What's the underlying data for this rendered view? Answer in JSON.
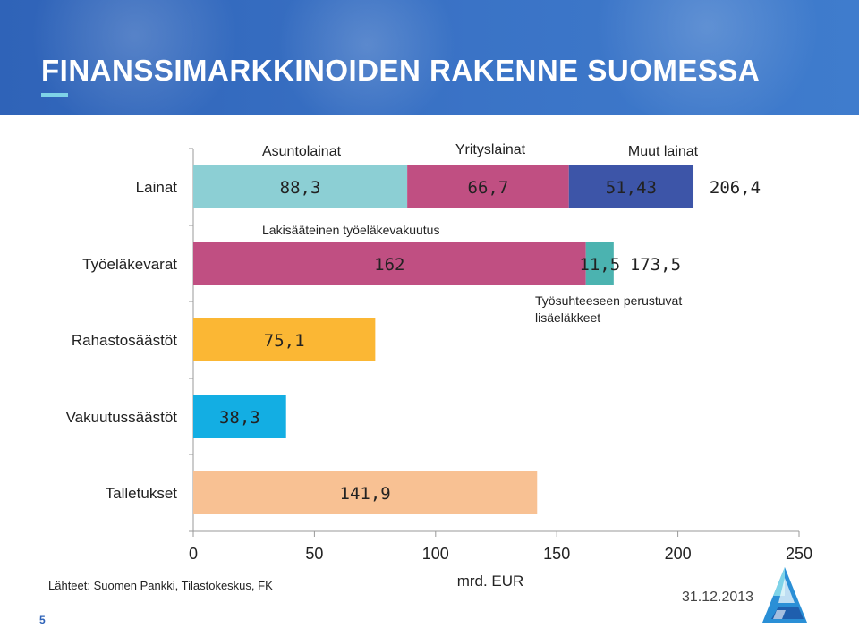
{
  "title": "FINANSSIMARKKINOIDEN RAKENNE SUOMESSA",
  "source": "Lähteet: Suomen Pankki, Tilastokeskus, FK",
  "page_number": "5",
  "date": "31.12.2013",
  "chart_data": {
    "type": "bar",
    "orientation": "horizontal",
    "stacked": true,
    "xlabel": "mrd. EUR",
    "xlim": [
      0,
      250
    ],
    "xticks": [
      "0",
      "50",
      "100",
      "150",
      "200",
      "250"
    ],
    "grid": false,
    "categories": [
      "Lainat",
      "Työeläkevarat",
      "Rahastosäästöt",
      "Vakuutussäästöt",
      "Talletukset"
    ],
    "bars": [
      {
        "category": "Lainat",
        "total": 206.4,
        "total_label": "206,4",
        "segments": [
          {
            "name": "Asuntolainat",
            "value": 88.3,
            "label": "88,3",
            "color": "#8ccfd4"
          },
          {
            "name": "Yrityslainat",
            "value": 66.7,
            "label": "66,7",
            "color": "#c04f82"
          },
          {
            "name": "Muut lainat",
            "value": 51.43,
            "label": "51,43",
            "color": "#3d55a8"
          }
        ]
      },
      {
        "category": "Työeläkevarat",
        "total": 173.5,
        "total_label": "173,5",
        "segments": [
          {
            "name": "Lakisääteinen työeläkevakuutus",
            "value": 162,
            "label": "162",
            "color": "#c04f82"
          },
          {
            "name": "Työsuhteeseen perustuvat lisäeläkkeet",
            "value": 11.5,
            "label": "11,5",
            "color": "#4bb3b0"
          }
        ]
      },
      {
        "category": "Rahastosäästöt",
        "total": 75.1,
        "segments": [
          {
            "value": 75.1,
            "label": "75,1",
            "color": "#fbb734"
          }
        ]
      },
      {
        "category": "Vakuutussäästöt",
        "total": 38.3,
        "segments": [
          {
            "value": 38.3,
            "label": "38,3",
            "color": "#13aee3"
          }
        ]
      },
      {
        "category": "Talletukset",
        "total": 141.9,
        "segments": [
          {
            "value": 141.9,
            "label": "141,9",
            "color": "#f8c193"
          }
        ]
      }
    ],
    "annotations": {
      "asuntolainat": "Asuntolainat",
      "yrityslainat": "Yrityslainat",
      "muut_lainat": "Muut lainat",
      "lakisaateinen": "Lakisääteinen työeläkevakuutus",
      "tyosuhde_line1": "Työsuhteeseen perustuvat",
      "tyosuhde_line2": "lisäeläkkeet"
    }
  }
}
